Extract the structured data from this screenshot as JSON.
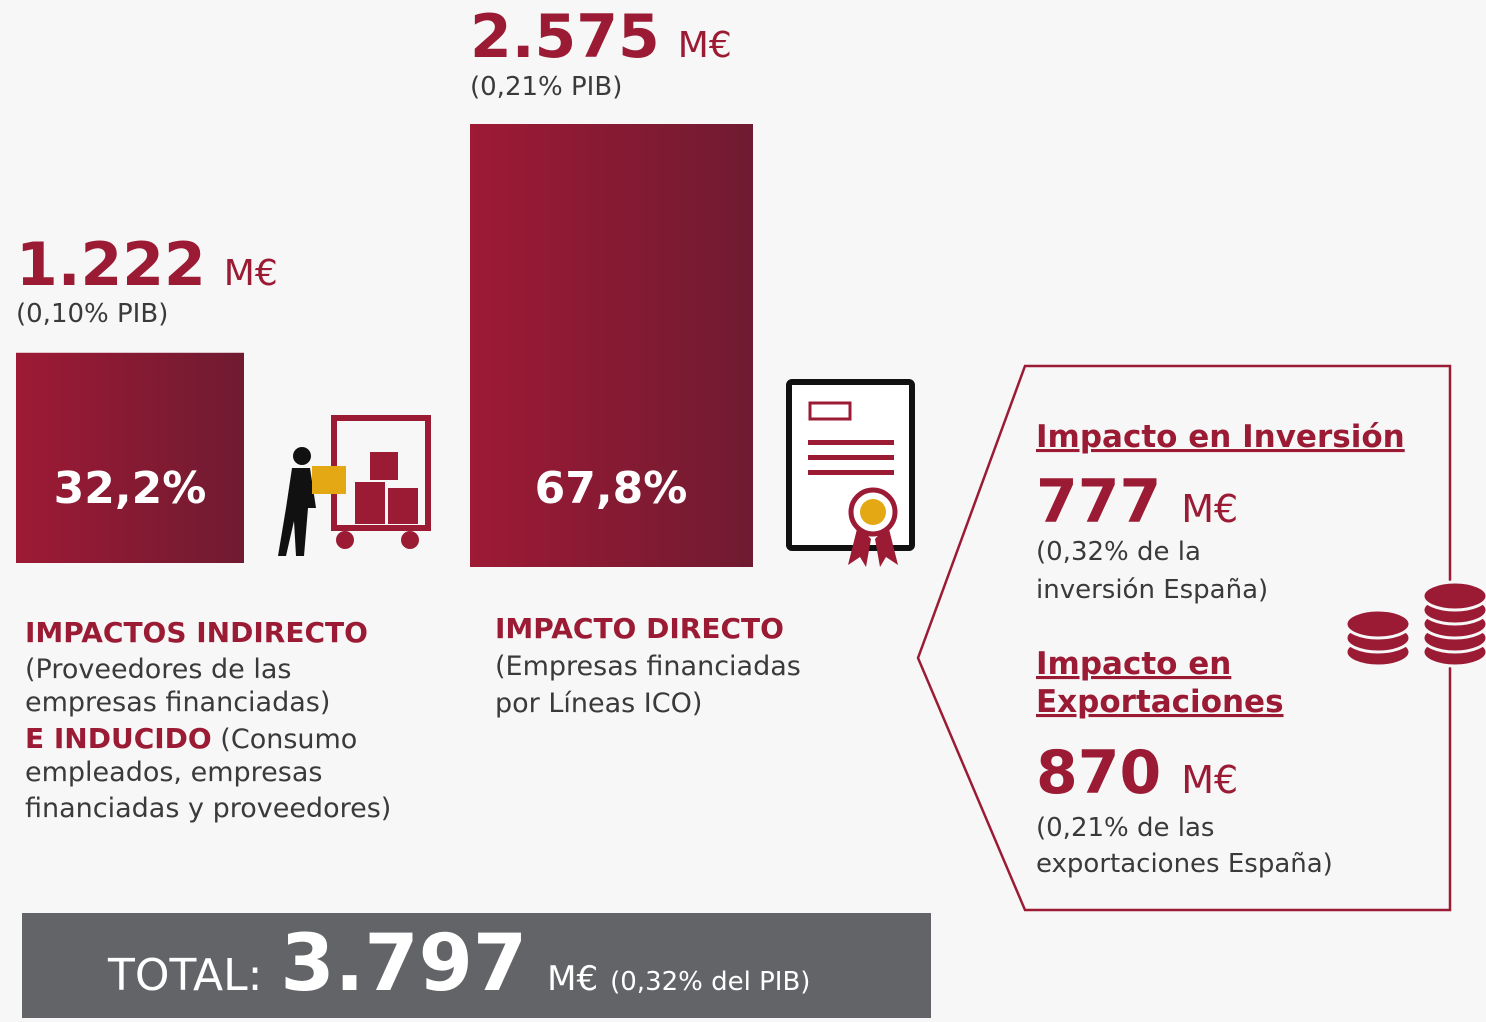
{
  "indirect": {
    "value": 1222,
    "value_label": "1.222",
    "unit": "M€",
    "pib": "(0,10% PIB)",
    "share": "32,2%",
    "title": "IMPACTOS INDIRECTO",
    "lines": [
      "(Proveedores de las",
      "empresas financiadas)"
    ],
    "title2": "E INDUCIDO",
    "after_title2": " (Consumo",
    "lines2": [
      "empleados, empresas",
      "financiadas y proveedores)"
    ]
  },
  "direct": {
    "value": 2575,
    "value_label": "2.575",
    "unit": "M€",
    "pib": "(0,21% PIB)",
    "share": "67,8%",
    "title": "IMPACTO DIRECTO",
    "lines": [
      "(Empresas financiadas",
      "por Líneas ICO)"
    ]
  },
  "panel": {
    "investment": {
      "title": "Impacto en Inversión",
      "value": "777",
      "unit": "M€",
      "lines": [
        "(0,32% de la",
        "inversión España)"
      ]
    },
    "exports": {
      "title": [
        "Impacto en",
        "Exportaciones"
      ],
      "value": "870",
      "unit": "M€",
      "lines": [
        "(0,21% de las",
        "exportaciones España)"
      ]
    }
  },
  "total": {
    "label": "TOTAL:",
    "value": "3.797",
    "unit": "M€",
    "pib": "(0,32% del PIB)"
  }
}
